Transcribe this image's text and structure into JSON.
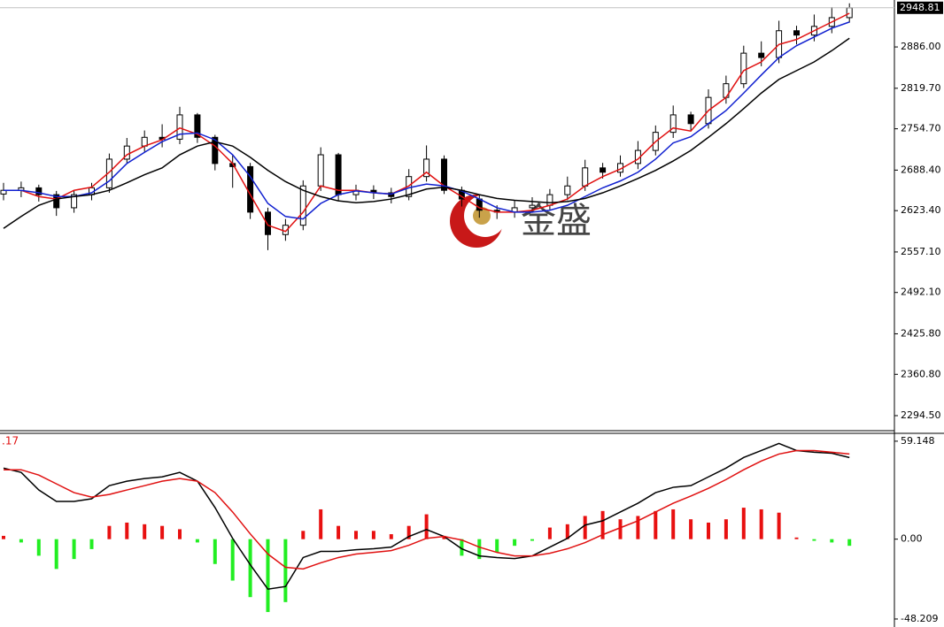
{
  "chart_data": [
    {
      "type": "candlestick",
      "open": [
        2650,
        2656,
        2660,
        2649,
        2628,
        2649,
        2660,
        2706,
        2727,
        2741,
        2738,
        2777,
        2741,
        2699,
        2694,
        2621,
        2585,
        2600,
        2663,
        2713,
        2649,
        2656,
        2652,
        2646,
        2678,
        2706,
        2656,
        2642,
        2624,
        2621,
        2628,
        2632,
        2649,
        2663,
        2692,
        2685,
        2699,
        2720,
        2749,
        2777,
        2763,
        2805,
        2827,
        2876,
        2869,
        2912,
        2905,
        2919,
        2933
      ],
      "high": [
        2668,
        2670,
        2665,
        2655,
        2655,
        2668,
        2715,
        2740,
        2752,
        2762,
        2790,
        2780,
        2745,
        2712,
        2700,
        2628,
        2610,
        2672,
        2725,
        2716,
        2665,
        2664,
        2660,
        2690,
        2728,
        2712,
        2662,
        2648,
        2632,
        2640,
        2645,
        2658,
        2678,
        2705,
        2700,
        2712,
        2735,
        2760,
        2792,
        2782,
        2818,
        2840,
        2888,
        2895,
        2928,
        2920,
        2938,
        2950,
        2956
      ],
      "low": [
        2640,
        2645,
        2638,
        2615,
        2620,
        2640,
        2652,
        2700,
        2718,
        2725,
        2730,
        2732,
        2688,
        2660,
        2610,
        2560,
        2575,
        2592,
        2655,
        2640,
        2640,
        2642,
        2635,
        2640,
        2670,
        2650,
        2630,
        2612,
        2610,
        2612,
        2620,
        2625,
        2640,
        2655,
        2675,
        2678,
        2690,
        2712,
        2740,
        2752,
        2755,
        2795,
        2820,
        2855,
        2860,
        2890,
        2895,
        2908,
        2925
      ],
      "close": [
        2656,
        2660,
        2649,
        2628,
        2649,
        2660,
        2706,
        2727,
        2741,
        2738,
        2777,
        2741,
        2699,
        2694,
        2621,
        2585,
        2600,
        2663,
        2713,
        2649,
        2656,
        2652,
        2646,
        2678,
        2706,
        2656,
        2642,
        2624,
        2621,
        2628,
        2632,
        2649,
        2663,
        2692,
        2685,
        2699,
        2720,
        2749,
        2777,
        2763,
        2805,
        2827,
        2876,
        2869,
        2912,
        2905,
        2919,
        2933,
        2948.81
      ],
      "up_color": "#ffffff",
      "down_color": "#000000",
      "series": [
        {
          "color": "#e01010",
          "values": [
            2656,
            2656,
            2646,
            2642,
            2656,
            2661,
            2685,
            2713,
            2727,
            2737,
            2756,
            2746,
            2727,
            2699,
            2649,
            2600,
            2590,
            2621,
            2663,
            2656,
            2656,
            2652,
            2650,
            2663,
            2685,
            2663,
            2646,
            2628,
            2621,
            2621,
            2624,
            2632,
            2642,
            2663,
            2678,
            2690,
            2706,
            2734,
            2756,
            2751,
            2784,
            2805,
            2848,
            2862,
            2890,
            2898,
            2912,
            2926,
            2940
          ]
        },
        {
          "color": "#1020d0",
          "values": [
            2656,
            2656,
            2652,
            2646,
            2646,
            2652,
            2671,
            2699,
            2717,
            2734,
            2746,
            2748,
            2737,
            2713,
            2678,
            2635,
            2614,
            2610,
            2635,
            2649,
            2655,
            2652,
            2650,
            2660,
            2666,
            2663,
            2655,
            2642,
            2628,
            2621,
            2621,
            2624,
            2632,
            2646,
            2660,
            2671,
            2685,
            2706,
            2732,
            2742,
            2763,
            2784,
            2812,
            2841,
            2869,
            2888,
            2902,
            2916,
            2926
          ]
        },
        {
          "color": "#000000",
          "values": [
            2595,
            2614,
            2632,
            2642,
            2646,
            2649,
            2656,
            2668,
            2681,
            2692,
            2713,
            2727,
            2734,
            2727,
            2709,
            2688,
            2670,
            2656,
            2646,
            2639,
            2636,
            2638,
            2642,
            2649,
            2658,
            2661,
            2656,
            2649,
            2643,
            2640,
            2638,
            2636,
            2638,
            2643,
            2652,
            2663,
            2675,
            2688,
            2703,
            2720,
            2741,
            2763,
            2787,
            2812,
            2834,
            2848,
            2862,
            2880,
            2900
          ]
        }
      ],
      "ylim": [
        2270.4,
        2961.3
      ],
      "yticks": [
        {
          "value": 2886.0,
          "label": "2886.00"
        },
        {
          "value": 2819.7,
          "label": "2819.70"
        },
        {
          "value": 2754.7,
          "label": "2754.70"
        },
        {
          "value": 2688.4,
          "label": "2688.40"
        },
        {
          "value": 2623.4,
          "label": "2623.40"
        },
        {
          "value": 2557.1,
          "label": "2557.10"
        },
        {
          "value": 2492.1,
          "label": "2492.10"
        },
        {
          "value": 2425.8,
          "label": "2425.80"
        },
        {
          "value": 2360.8,
          "label": "2360.80"
        },
        {
          "value": 2294.5,
          "label": "2294.50"
        }
      ],
      "watermark": "金盛"
    },
    {
      "type": "macd",
      "label": ".17",
      "histogram": [
        2,
        -2,
        -10,
        -18,
        -12,
        -6,
        8,
        10,
        9,
        8,
        6,
        -2,
        -15,
        -25,
        -35,
        -44,
        -38,
        5,
        18,
        8,
        5,
        5,
        3,
        8,
        15,
        2,
        -10,
        -12,
        -8,
        -4,
        -1,
        7,
        9,
        14,
        17,
        12,
        14,
        17,
        18,
        12,
        10,
        12,
        19,
        18,
        16,
        1,
        -1,
        -2,
        -4
      ],
      "positive_color": "#e81010",
      "negative_color": "#22ee22",
      "series": [
        {
          "color": "#000000",
          "values": [
            42.9,
            40.3,
            29.7,
            22.8,
            22.8,
            24.4,
            32.3,
            35.0,
            36.6,
            37.6,
            40.3,
            35.0,
            19.1,
            0.5,
            -15.4,
            -30.2,
            -28.6,
            -11.1,
            -7.4,
            -7.4,
            -6.4,
            -5.8,
            -4.8,
            1.6,
            5.8,
            1.6,
            -5.8,
            -10.1,
            -11.1,
            -11.7,
            -10.1,
            -4.8,
            0.5,
            8.5,
            11.1,
            16.4,
            21.7,
            28.1,
            31.3,
            32.3,
            37.6,
            42.9,
            49.3,
            53.5,
            57.8,
            53.5,
            52.5,
            51.9,
            49.3
          ]
        },
        {
          "color": "#e01010",
          "values": [
            41.9,
            41.9,
            38.7,
            33.4,
            28.1,
            25.4,
            27.0,
            29.7,
            32.3,
            35.0,
            36.6,
            35.0,
            28.1,
            16.4,
            3.2,
            -9.0,
            -17.0,
            -18.0,
            -14.3,
            -11.1,
            -9.0,
            -8.0,
            -6.9,
            -3.7,
            0.5,
            1.6,
            -0.5,
            -4.8,
            -8.0,
            -10.1,
            -10.1,
            -8.5,
            -5.8,
            -2.1,
            2.7,
            6.9,
            11.1,
            16.4,
            21.7,
            26.0,
            30.7,
            36.0,
            41.9,
            47.2,
            51.4,
            53.5,
            53.5,
            52.5,
            51.4
          ]
        }
      ],
      "ylim": [
        -50.9,
        63.9
      ],
      "yticks": [
        59.148,
        {
          "value": 0,
          "label": "0.00"
        },
        -48.209
      ]
    }
  ]
}
